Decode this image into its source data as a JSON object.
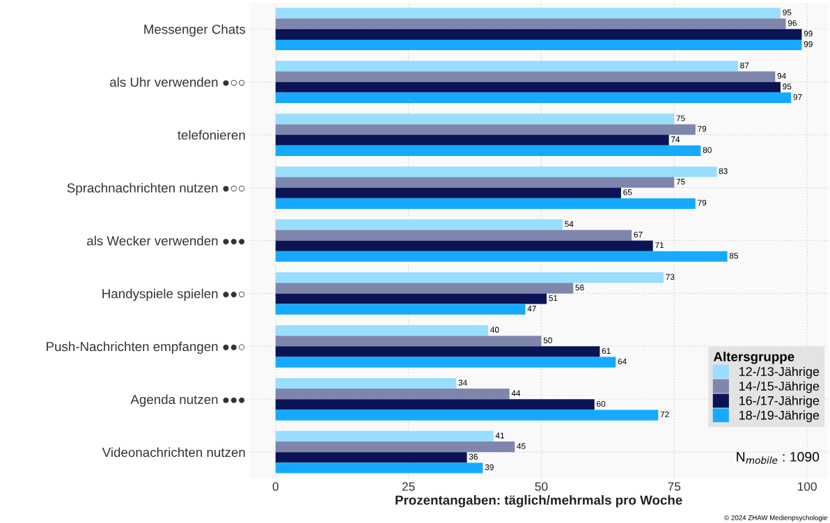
{
  "chart_data": {
    "type": "bar",
    "orientation": "horizontal",
    "xlabel": "Prozentangaben: täglich/mehrmals pro Woche",
    "categories": [
      "Messenger Chats",
      "als Uhr verwenden ●○○",
      "telefonieren",
      "Sprachnachrichten nutzen ●○○",
      "als Wecker verwenden ●●●",
      "Handyspiele spielen ●●○",
      "Push-Nachrichten empfangen ●●○",
      "Agenda nutzen ●●●",
      "Videonachrichten nutzen"
    ],
    "series": [
      {
        "name": "12-/13-Jährige",
        "color": "#99ddff",
        "values": [
          95,
          87,
          75,
          83,
          54,
          73,
          40,
          34,
          41
        ]
      },
      {
        "name": "14-/15-Jährige",
        "color": "#7f86ac",
        "values": [
          96,
          94,
          79,
          75,
          67,
          56,
          50,
          44,
          45
        ]
      },
      {
        "name": "16-/17-Jährige",
        "color": "#0a1454",
        "values": [
          99,
          95,
          74,
          65,
          71,
          51,
          61,
          60,
          36
        ]
      },
      {
        "name": "18-/19-Jährige",
        "color": "#15aaff",
        "values": [
          99,
          97,
          80,
          79,
          85,
          47,
          64,
          72,
          39
        ]
      }
    ],
    "xlim": [
      -5,
      104
    ],
    "xticks": [
      0,
      25,
      50,
      75,
      100
    ],
    "data_labels": true,
    "grid": true,
    "legend": "bottom right",
    "legend_title": "Altersgruppe",
    "annotations": [
      "N$_{mobile}$ : 1090",
      "© 2024 ZHAW Medienpsychologie"
    ]
  }
}
